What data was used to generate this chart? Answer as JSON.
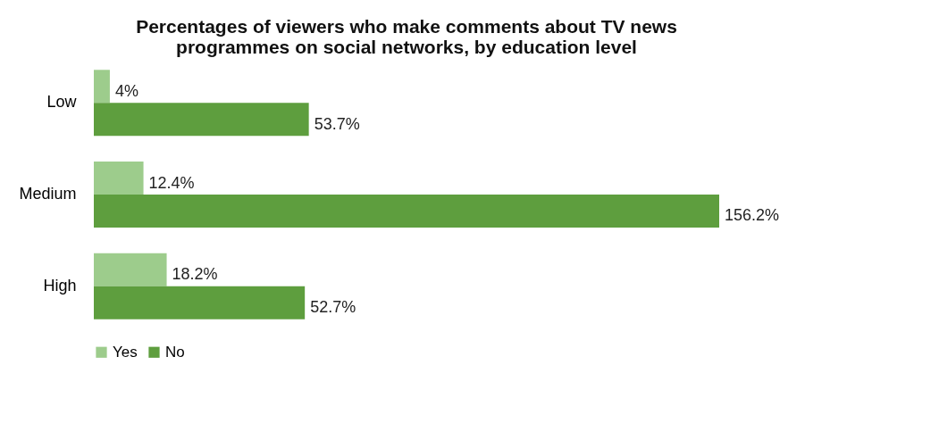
{
  "chart_data": {
    "type": "bar",
    "orientation": "horizontal",
    "title": "Percentages of viewers who make comments about TV news programmes on social networks, by education level",
    "categories": [
      "Low",
      "Medium",
      "High"
    ],
    "series": [
      {
        "name": "Yes",
        "color": "#9dcc8c",
        "values": [
          4,
          12.4,
          18.2
        ],
        "value_labels": [
          "4%",
          "12.4%",
          "18.2%"
        ]
      },
      {
        "name": "No",
        "color": "#5e9e3e",
        "values": [
          53.7,
          156.2,
          52.7
        ],
        "value_labels": [
          "53.7%",
          "156.2%",
          "52.7%"
        ]
      }
    ],
    "tick_labels": "y",
    "legend": "bottom"
  }
}
